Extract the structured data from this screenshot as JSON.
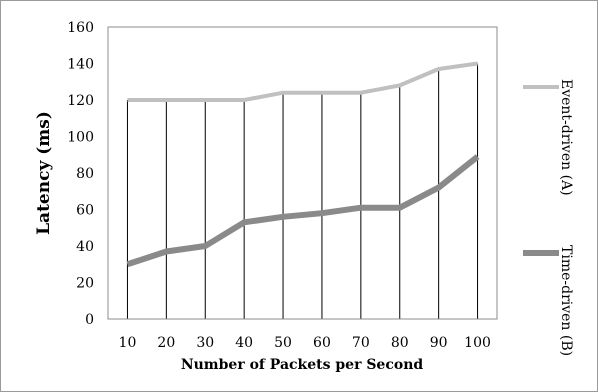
{
  "chart_data": {
    "type": "line",
    "x": [
      10,
      20,
      30,
      40,
      50,
      60,
      70,
      80,
      90,
      100
    ],
    "categories": [
      "10",
      "20",
      "30",
      "40",
      "50",
      "60",
      "70",
      "80",
      "90",
      "100"
    ],
    "xlabel": "Number of Packets per Second",
    "ylabel": "Latency (ms)",
    "ylim": [
      0,
      160
    ],
    "yticks": [
      "0",
      "20",
      "40",
      "60",
      "80",
      "100",
      "120",
      "140",
      "160"
    ],
    "grid": "vertical lines at each category",
    "legend_position": "right",
    "series": [
      {
        "name": "Event-driven (A)",
        "color": "#c0c0c0",
        "values": [
          120,
          120,
          120,
          120,
          124,
          124,
          124,
          128,
          137,
          140
        ]
      },
      {
        "name": "Time-driven (B)",
        "color": "#8a8a8a",
        "values": [
          30,
          37,
          40,
          53,
          56,
          58,
          61,
          61,
          72,
          89
        ]
      }
    ]
  }
}
